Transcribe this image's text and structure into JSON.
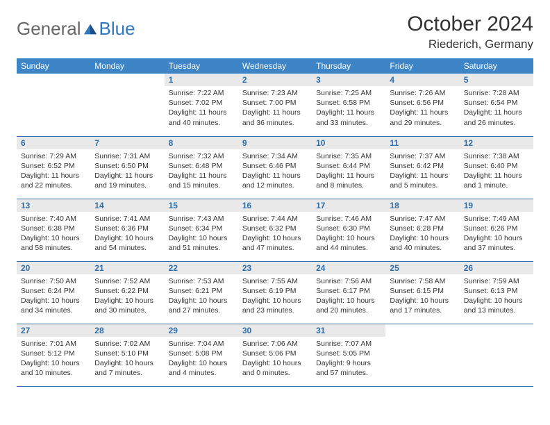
{
  "brand": {
    "general": "General",
    "blue": "Blue"
  },
  "title": "October 2024",
  "location": "Riederich, Germany",
  "colors": {
    "header_bg": "#3d85c6",
    "header_text": "#ffffff",
    "daynum_bg": "#e9e9e9",
    "daynum_text": "#2f6ea8",
    "row_border": "#2f6ea8",
    "body_text": "#333333",
    "background": "#ffffff"
  },
  "weekdays": [
    "Sunday",
    "Monday",
    "Tuesday",
    "Wednesday",
    "Thursday",
    "Friday",
    "Saturday"
  ],
  "weeks": [
    [
      null,
      null,
      {
        "day": "1",
        "sunrise": "Sunrise: 7:22 AM",
        "sunset": "Sunset: 7:02 PM",
        "daylight": "Daylight: 11 hours and 40 minutes."
      },
      {
        "day": "2",
        "sunrise": "Sunrise: 7:23 AM",
        "sunset": "Sunset: 7:00 PM",
        "daylight": "Daylight: 11 hours and 36 minutes."
      },
      {
        "day": "3",
        "sunrise": "Sunrise: 7:25 AM",
        "sunset": "Sunset: 6:58 PM",
        "daylight": "Daylight: 11 hours and 33 minutes."
      },
      {
        "day": "4",
        "sunrise": "Sunrise: 7:26 AM",
        "sunset": "Sunset: 6:56 PM",
        "daylight": "Daylight: 11 hours and 29 minutes."
      },
      {
        "day": "5",
        "sunrise": "Sunrise: 7:28 AM",
        "sunset": "Sunset: 6:54 PM",
        "daylight": "Daylight: 11 hours and 26 minutes."
      }
    ],
    [
      {
        "day": "6",
        "sunrise": "Sunrise: 7:29 AM",
        "sunset": "Sunset: 6:52 PM",
        "daylight": "Daylight: 11 hours and 22 minutes."
      },
      {
        "day": "7",
        "sunrise": "Sunrise: 7:31 AM",
        "sunset": "Sunset: 6:50 PM",
        "daylight": "Daylight: 11 hours and 19 minutes."
      },
      {
        "day": "8",
        "sunrise": "Sunrise: 7:32 AM",
        "sunset": "Sunset: 6:48 PM",
        "daylight": "Daylight: 11 hours and 15 minutes."
      },
      {
        "day": "9",
        "sunrise": "Sunrise: 7:34 AM",
        "sunset": "Sunset: 6:46 PM",
        "daylight": "Daylight: 11 hours and 12 minutes."
      },
      {
        "day": "10",
        "sunrise": "Sunrise: 7:35 AM",
        "sunset": "Sunset: 6:44 PM",
        "daylight": "Daylight: 11 hours and 8 minutes."
      },
      {
        "day": "11",
        "sunrise": "Sunrise: 7:37 AM",
        "sunset": "Sunset: 6:42 PM",
        "daylight": "Daylight: 11 hours and 5 minutes."
      },
      {
        "day": "12",
        "sunrise": "Sunrise: 7:38 AM",
        "sunset": "Sunset: 6:40 PM",
        "daylight": "Daylight: 11 hours and 1 minute."
      }
    ],
    [
      {
        "day": "13",
        "sunrise": "Sunrise: 7:40 AM",
        "sunset": "Sunset: 6:38 PM",
        "daylight": "Daylight: 10 hours and 58 minutes."
      },
      {
        "day": "14",
        "sunrise": "Sunrise: 7:41 AM",
        "sunset": "Sunset: 6:36 PM",
        "daylight": "Daylight: 10 hours and 54 minutes."
      },
      {
        "day": "15",
        "sunrise": "Sunrise: 7:43 AM",
        "sunset": "Sunset: 6:34 PM",
        "daylight": "Daylight: 10 hours and 51 minutes."
      },
      {
        "day": "16",
        "sunrise": "Sunrise: 7:44 AM",
        "sunset": "Sunset: 6:32 PM",
        "daylight": "Daylight: 10 hours and 47 minutes."
      },
      {
        "day": "17",
        "sunrise": "Sunrise: 7:46 AM",
        "sunset": "Sunset: 6:30 PM",
        "daylight": "Daylight: 10 hours and 44 minutes."
      },
      {
        "day": "18",
        "sunrise": "Sunrise: 7:47 AM",
        "sunset": "Sunset: 6:28 PM",
        "daylight": "Daylight: 10 hours and 40 minutes."
      },
      {
        "day": "19",
        "sunrise": "Sunrise: 7:49 AM",
        "sunset": "Sunset: 6:26 PM",
        "daylight": "Daylight: 10 hours and 37 minutes."
      }
    ],
    [
      {
        "day": "20",
        "sunrise": "Sunrise: 7:50 AM",
        "sunset": "Sunset: 6:24 PM",
        "daylight": "Daylight: 10 hours and 34 minutes."
      },
      {
        "day": "21",
        "sunrise": "Sunrise: 7:52 AM",
        "sunset": "Sunset: 6:22 PM",
        "daylight": "Daylight: 10 hours and 30 minutes."
      },
      {
        "day": "22",
        "sunrise": "Sunrise: 7:53 AM",
        "sunset": "Sunset: 6:21 PM",
        "daylight": "Daylight: 10 hours and 27 minutes."
      },
      {
        "day": "23",
        "sunrise": "Sunrise: 7:55 AM",
        "sunset": "Sunset: 6:19 PM",
        "daylight": "Daylight: 10 hours and 23 minutes."
      },
      {
        "day": "24",
        "sunrise": "Sunrise: 7:56 AM",
        "sunset": "Sunset: 6:17 PM",
        "daylight": "Daylight: 10 hours and 20 minutes."
      },
      {
        "day": "25",
        "sunrise": "Sunrise: 7:58 AM",
        "sunset": "Sunset: 6:15 PM",
        "daylight": "Daylight: 10 hours and 17 minutes."
      },
      {
        "day": "26",
        "sunrise": "Sunrise: 7:59 AM",
        "sunset": "Sunset: 6:13 PM",
        "daylight": "Daylight: 10 hours and 13 minutes."
      }
    ],
    [
      {
        "day": "27",
        "sunrise": "Sunrise: 7:01 AM",
        "sunset": "Sunset: 5:12 PM",
        "daylight": "Daylight: 10 hours and 10 minutes."
      },
      {
        "day": "28",
        "sunrise": "Sunrise: 7:02 AM",
        "sunset": "Sunset: 5:10 PM",
        "daylight": "Daylight: 10 hours and 7 minutes."
      },
      {
        "day": "29",
        "sunrise": "Sunrise: 7:04 AM",
        "sunset": "Sunset: 5:08 PM",
        "daylight": "Daylight: 10 hours and 4 minutes."
      },
      {
        "day": "30",
        "sunrise": "Sunrise: 7:06 AM",
        "sunset": "Sunset: 5:06 PM",
        "daylight": "Daylight: 10 hours and 0 minutes."
      },
      {
        "day": "31",
        "sunrise": "Sunrise: 7:07 AM",
        "sunset": "Sunset: 5:05 PM",
        "daylight": "Daylight: 9 hours and 57 minutes."
      },
      null,
      null
    ]
  ]
}
